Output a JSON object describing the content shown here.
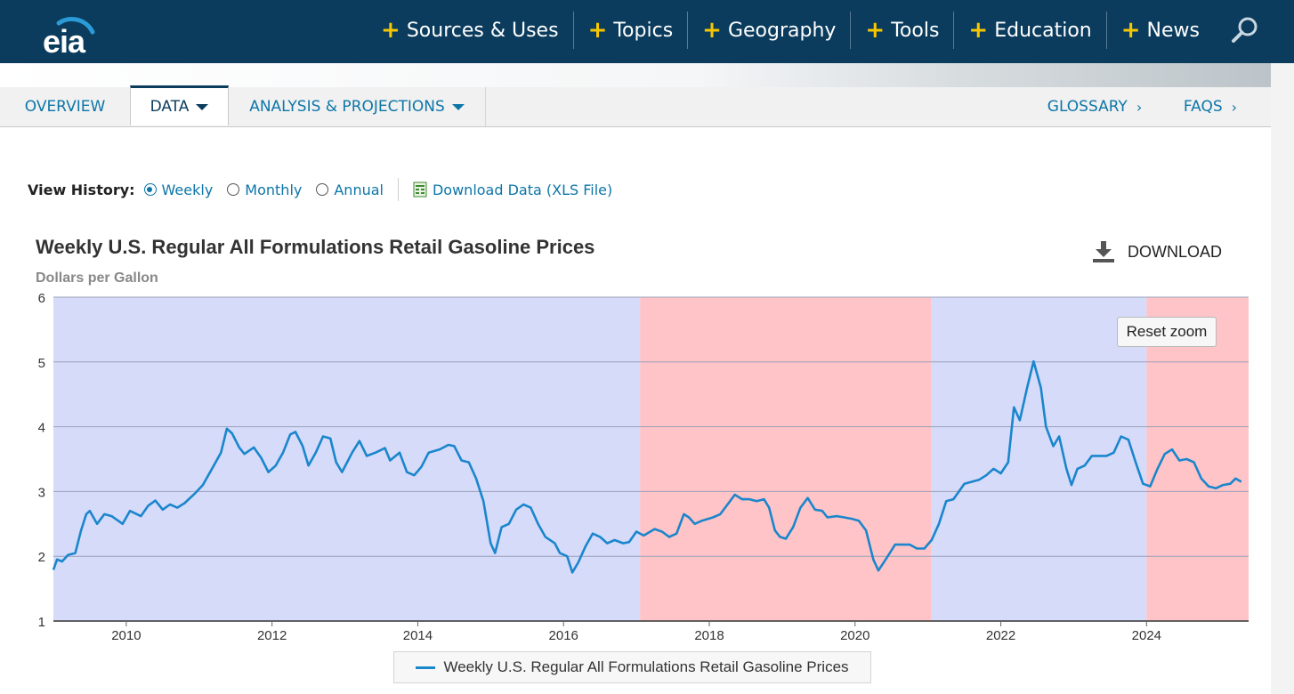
{
  "header": {
    "logo_text": "eia",
    "nav": [
      {
        "label": "Sources & Uses",
        "icon": "plus-icon"
      },
      {
        "label": "Topics",
        "icon": "plus-icon"
      },
      {
        "label": "Geography",
        "icon": "plus-icon"
      },
      {
        "label": "Tools",
        "icon": "plus-icon"
      },
      {
        "label": "Education",
        "icon": "plus-icon"
      },
      {
        "label": "News",
        "icon": "plus-icon"
      }
    ],
    "search_icon": "search-icon",
    "colors": {
      "bar": "#0b3c5d",
      "plus": "#f7c600"
    }
  },
  "tabs": {
    "overview": "OVERVIEW",
    "data": "DATA",
    "analysis": "ANALYSIS & PROJECTIONS",
    "glossary": "GLOSSARY",
    "faqs": "FAQS",
    "active": "DATA"
  },
  "view_history": {
    "label": "View History:",
    "options": [
      "Weekly",
      "Monthly",
      "Annual"
    ],
    "selected": "Weekly",
    "download_link": "Download Data (XLS File)"
  },
  "chart_panel": {
    "download_label": "DOWNLOAD",
    "reset_zoom_label": "Reset zoom",
    "legend_label": "Weekly U.S. Regular All Formulations Retail Gasoline Prices"
  },
  "chart_data": {
    "type": "line",
    "title": "Weekly U.S. Regular All Formulations Retail Gasoline Prices",
    "subtitle": "Dollars per Gallon",
    "xlabel": "",
    "ylabel": "",
    "xlim": [
      2009.0,
      2025.4
    ],
    "ylim": [
      1,
      6
    ],
    "x_ticks": [
      2010,
      2012,
      2014,
      2016,
      2018,
      2020,
      2022,
      2024
    ],
    "y_ticks": [
      1,
      2,
      3,
      4,
      5,
      6
    ],
    "grid": true,
    "legend": "bottom-center",
    "bands": [
      {
        "from": 2009.0,
        "to": 2017.05,
        "color": "#d6dbfa"
      },
      {
        "from": 2017.05,
        "to": 2021.05,
        "color": "#ffc4c8"
      },
      {
        "from": 2021.05,
        "to": 2024.0,
        "color": "#d6dbfa"
      },
      {
        "from": 2024.0,
        "to": 2025.4,
        "color": "#ffc4c8"
      }
    ],
    "series": [
      {
        "name": "Weekly U.S. Regular All Formulations Retail Gasoline Prices",
        "color": "#1a86cc",
        "points": [
          [
            2009.0,
            1.79
          ],
          [
            2009.05,
            1.95
          ],
          [
            2009.12,
            1.92
          ],
          [
            2009.2,
            2.02
          ],
          [
            2009.3,
            2.05
          ],
          [
            2009.38,
            2.4
          ],
          [
            2009.45,
            2.65
          ],
          [
            2009.5,
            2.7
          ],
          [
            2009.6,
            2.5
          ],
          [
            2009.7,
            2.65
          ],
          [
            2009.8,
            2.62
          ],
          [
            2009.95,
            2.5
          ],
          [
            2010.05,
            2.7
          ],
          [
            2010.2,
            2.62
          ],
          [
            2010.3,
            2.78
          ],
          [
            2010.4,
            2.86
          ],
          [
            2010.5,
            2.72
          ],
          [
            2010.6,
            2.8
          ],
          [
            2010.7,
            2.75
          ],
          [
            2010.8,
            2.82
          ],
          [
            2010.95,
            2.98
          ],
          [
            2011.05,
            3.1
          ],
          [
            2011.2,
            3.4
          ],
          [
            2011.3,
            3.6
          ],
          [
            2011.38,
            3.97
          ],
          [
            2011.45,
            3.9
          ],
          [
            2011.55,
            3.68
          ],
          [
            2011.62,
            3.58
          ],
          [
            2011.75,
            3.68
          ],
          [
            2011.85,
            3.52
          ],
          [
            2011.95,
            3.3
          ],
          [
            2012.05,
            3.4
          ],
          [
            2012.15,
            3.6
          ],
          [
            2012.25,
            3.88
          ],
          [
            2012.32,
            3.92
          ],
          [
            2012.42,
            3.7
          ],
          [
            2012.5,
            3.4
          ],
          [
            2012.6,
            3.6
          ],
          [
            2012.7,
            3.85
          ],
          [
            2012.8,
            3.82
          ],
          [
            2012.88,
            3.45
          ],
          [
            2012.96,
            3.3
          ],
          [
            2013.1,
            3.6
          ],
          [
            2013.2,
            3.78
          ],
          [
            2013.3,
            3.55
          ],
          [
            2013.42,
            3.6
          ],
          [
            2013.55,
            3.67
          ],
          [
            2013.62,
            3.48
          ],
          [
            2013.75,
            3.6
          ],
          [
            2013.85,
            3.3
          ],
          [
            2013.95,
            3.25
          ],
          [
            2014.05,
            3.38
          ],
          [
            2014.15,
            3.6
          ],
          [
            2014.3,
            3.65
          ],
          [
            2014.42,
            3.72
          ],
          [
            2014.5,
            3.7
          ],
          [
            2014.6,
            3.48
          ],
          [
            2014.7,
            3.45
          ],
          [
            2014.8,
            3.2
          ],
          [
            2014.9,
            2.85
          ],
          [
            2015.0,
            2.2
          ],
          [
            2015.06,
            2.05
          ],
          [
            2015.15,
            2.45
          ],
          [
            2015.25,
            2.5
          ],
          [
            2015.35,
            2.72
          ],
          [
            2015.45,
            2.8
          ],
          [
            2015.55,
            2.75
          ],
          [
            2015.65,
            2.5
          ],
          [
            2015.75,
            2.3
          ],
          [
            2015.88,
            2.2
          ],
          [
            2015.95,
            2.05
          ],
          [
            2016.05,
            2.0
          ],
          [
            2016.12,
            1.75
          ],
          [
            2016.2,
            1.9
          ],
          [
            2016.3,
            2.15
          ],
          [
            2016.4,
            2.35
          ],
          [
            2016.5,
            2.3
          ],
          [
            2016.6,
            2.2
          ],
          [
            2016.7,
            2.25
          ],
          [
            2016.82,
            2.2
          ],
          [
            2016.9,
            2.22
          ],
          [
            2017.0,
            2.38
          ],
          [
            2017.1,
            2.32
          ],
          [
            2017.25,
            2.42
          ],
          [
            2017.35,
            2.38
          ],
          [
            2017.45,
            2.3
          ],
          [
            2017.55,
            2.35
          ],
          [
            2017.65,
            2.65
          ],
          [
            2017.72,
            2.6
          ],
          [
            2017.8,
            2.5
          ],
          [
            2017.9,
            2.55
          ],
          [
            2018.05,
            2.6
          ],
          [
            2018.15,
            2.65
          ],
          [
            2018.25,
            2.8
          ],
          [
            2018.35,
            2.95
          ],
          [
            2018.45,
            2.88
          ],
          [
            2018.55,
            2.88
          ],
          [
            2018.65,
            2.85
          ],
          [
            2018.75,
            2.88
          ],
          [
            2018.82,
            2.75
          ],
          [
            2018.9,
            2.4
          ],
          [
            2018.97,
            2.3
          ],
          [
            2019.05,
            2.27
          ],
          [
            2019.15,
            2.45
          ],
          [
            2019.25,
            2.75
          ],
          [
            2019.35,
            2.9
          ],
          [
            2019.45,
            2.72
          ],
          [
            2019.55,
            2.7
          ],
          [
            2019.62,
            2.6
          ],
          [
            2019.75,
            2.62
          ],
          [
            2019.85,
            2.6
          ],
          [
            2019.95,
            2.58
          ],
          [
            2020.05,
            2.55
          ],
          [
            2020.15,
            2.4
          ],
          [
            2020.25,
            1.95
          ],
          [
            2020.32,
            1.78
          ],
          [
            2020.42,
            1.95
          ],
          [
            2020.55,
            2.18
          ],
          [
            2020.65,
            2.18
          ],
          [
            2020.75,
            2.18
          ],
          [
            2020.85,
            2.12
          ],
          [
            2020.95,
            2.12
          ],
          [
            2021.05,
            2.25
          ],
          [
            2021.15,
            2.5
          ],
          [
            2021.25,
            2.85
          ],
          [
            2021.35,
            2.88
          ],
          [
            2021.5,
            3.12
          ],
          [
            2021.6,
            3.15
          ],
          [
            2021.7,
            3.18
          ],
          [
            2021.8,
            3.25
          ],
          [
            2021.9,
            3.35
          ],
          [
            2022.0,
            3.28
          ],
          [
            2022.1,
            3.45
          ],
          [
            2022.18,
            4.3
          ],
          [
            2022.26,
            4.1
          ],
          [
            2022.36,
            4.6
          ],
          [
            2022.45,
            5.01
          ],
          [
            2022.55,
            4.6
          ],
          [
            2022.62,
            4.0
          ],
          [
            2022.72,
            3.7
          ],
          [
            2022.8,
            3.85
          ],
          [
            2022.9,
            3.35
          ],
          [
            2022.97,
            3.1
          ],
          [
            2023.05,
            3.35
          ],
          [
            2023.15,
            3.4
          ],
          [
            2023.25,
            3.55
          ],
          [
            2023.35,
            3.55
          ],
          [
            2023.45,
            3.55
          ],
          [
            2023.55,
            3.6
          ],
          [
            2023.65,
            3.85
          ],
          [
            2023.75,
            3.8
          ],
          [
            2023.85,
            3.45
          ],
          [
            2023.95,
            3.12
          ],
          [
            2024.05,
            3.08
          ],
          [
            2024.15,
            3.35
          ],
          [
            2024.25,
            3.58
          ],
          [
            2024.35,
            3.65
          ],
          [
            2024.45,
            3.48
          ],
          [
            2024.55,
            3.5
          ],
          [
            2024.65,
            3.45
          ],
          [
            2024.75,
            3.2
          ],
          [
            2024.85,
            3.08
          ],
          [
            2024.95,
            3.05
          ],
          [
            2025.05,
            3.1
          ],
          [
            2025.15,
            3.12
          ],
          [
            2025.22,
            3.2
          ],
          [
            2025.3,
            3.15
          ]
        ]
      }
    ]
  }
}
